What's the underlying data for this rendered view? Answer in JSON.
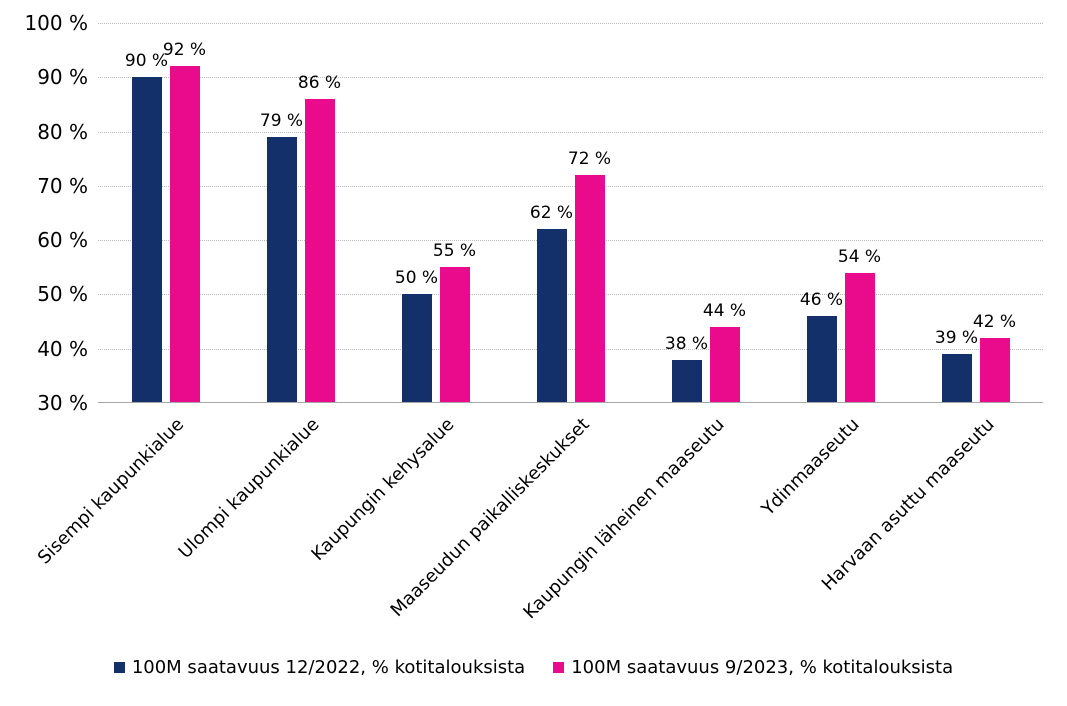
{
  "chart_data": {
    "type": "bar",
    "title": "",
    "xlabel": "",
    "ylabel": "",
    "categories": [
      "Sisempi kaupunkialue",
      "Ulompi kaupunkialue",
      "Kaupungin kehysalue",
      "Maaseudun paikalliskeskukset",
      "Kaupungin läheinen maaseutu",
      "Ydinmaaseutu",
      "Harvaan asuttu maaseutu"
    ],
    "series": [
      {
        "name": "100M saatavuus 12/2022, % kotitalouksista",
        "color": "#13306B",
        "values": [
          90,
          79,
          50,
          62,
          38,
          46,
          39
        ],
        "data_labels": [
          "90 %",
          "79 %",
          "50 %",
          "62 %",
          "38 %",
          "46 %",
          "39 %"
        ]
      },
      {
        "name": "100M saatavuus 9/2023, % kotitalouksista",
        "color": "#E90B8C",
        "values": [
          92,
          86,
          55,
          72,
          44,
          54,
          42
        ],
        "data_labels": [
          "92 %",
          "86 %",
          "55 %",
          "72 %",
          "44 %",
          "54 %",
          "42 %"
        ]
      }
    ],
    "ylim": [
      30,
      100
    ],
    "ytick_step": 10,
    "y_tick_values": [
      100,
      90,
      80,
      70,
      60,
      50,
      40,
      30
    ],
    "y_tick_labels": [
      "100 %",
      "90 %",
      "80 %",
      "70 %",
      "60 %",
      "50 %",
      "40 %",
      "30 %"
    ],
    "value_suffix": " %",
    "grid": "horizontal-dotted",
    "gridline_color": "#B9B9B9",
    "axis_line_color": "#A6A6A6",
    "background_color": "#FFFFFF",
    "legend_position": "bottom-center",
    "x_label_rotation_deg": -45
  }
}
